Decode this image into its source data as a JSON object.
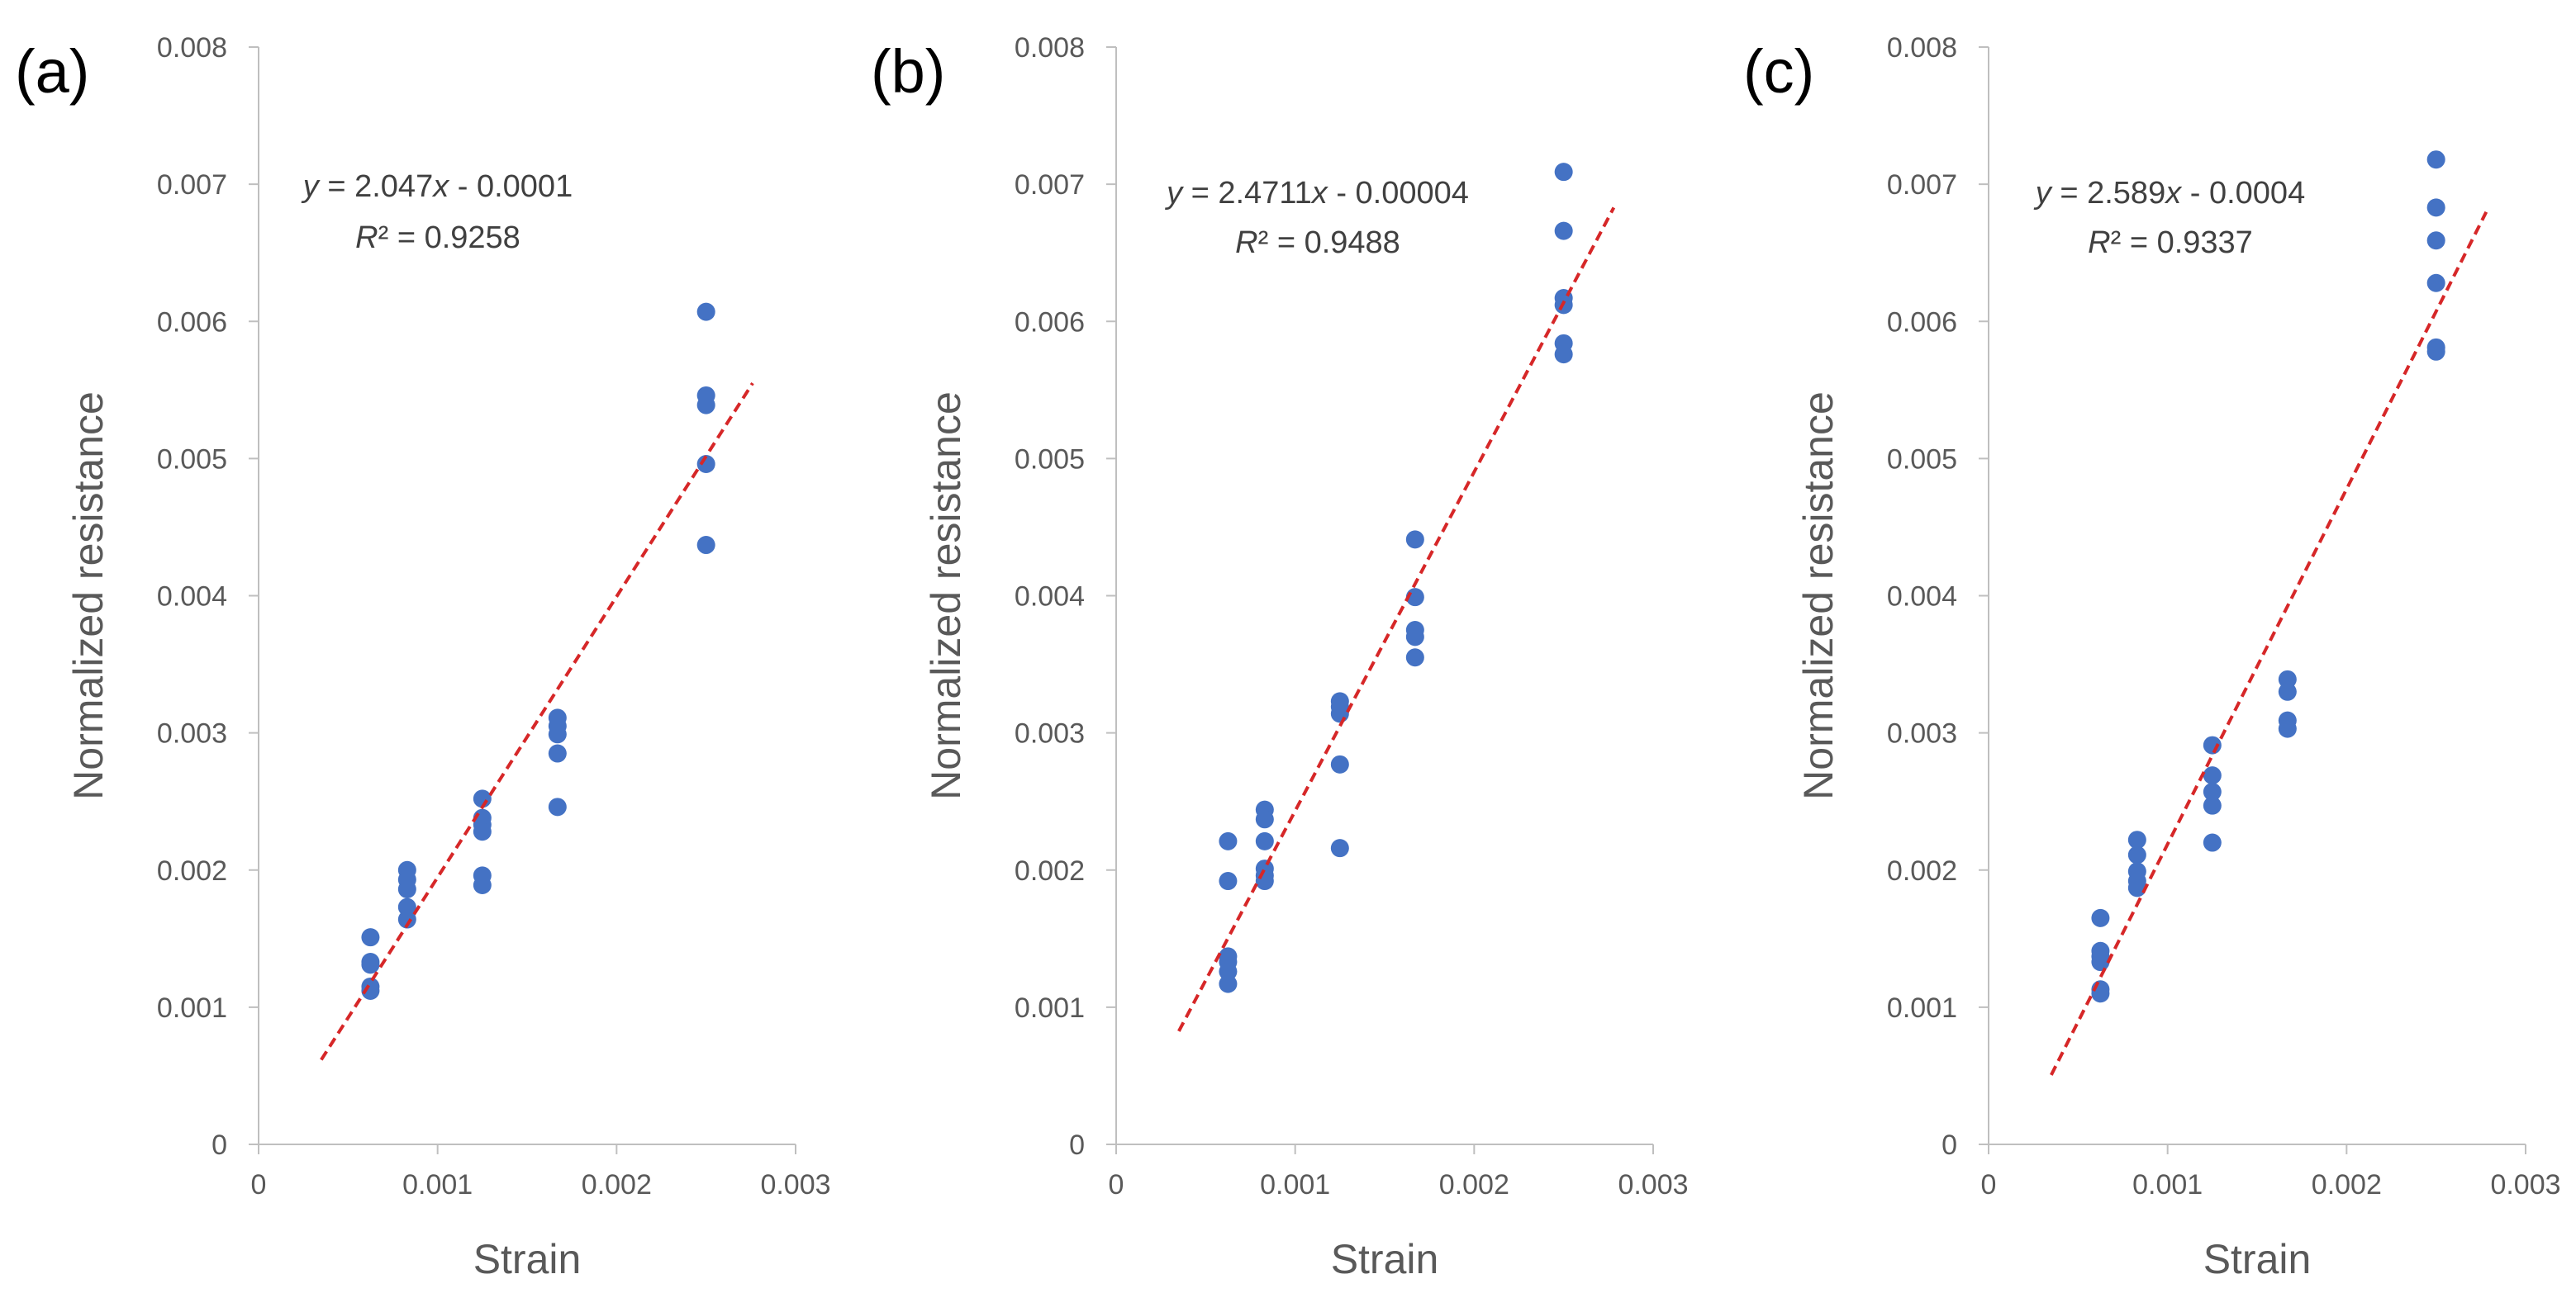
{
  "chart_data": [
    {
      "type": "scatter",
      "panel_label": "(a)",
      "xlabel": "Strain",
      "ylabel": "Normalized resistance",
      "xlim": [
        0,
        0.003
      ],
      "ylim": [
        0,
        0.008
      ],
      "x_ticks": [
        "0",
        "0.001",
        "0.002",
        "0.003"
      ],
      "y_ticks": [
        "0",
        "0.001",
        "0.002",
        "0.003",
        "0.004",
        "0.005",
        "0.006",
        "0.007",
        "0.008"
      ],
      "points": [
        [
          0.000625,
          0.00151
        ],
        [
          0.000625,
          0.00133
        ],
        [
          0.000625,
          0.00131
        ],
        [
          0.000625,
          0.00115
        ],
        [
          0.000625,
          0.00112
        ],
        [
          0.00083,
          0.002
        ],
        [
          0.00083,
          0.00193
        ],
        [
          0.00083,
          0.00186
        ],
        [
          0.00083,
          0.00173
        ],
        [
          0.00083,
          0.00164
        ],
        [
          0.00125,
          0.00252
        ],
        [
          0.00125,
          0.00238
        ],
        [
          0.00125,
          0.00233
        ],
        [
          0.00125,
          0.00228
        ],
        [
          0.00125,
          0.00196
        ],
        [
          0.00125,
          0.00189
        ],
        [
          0.00167,
          0.00311
        ],
        [
          0.00167,
          0.00305
        ],
        [
          0.00167,
          0.00299
        ],
        [
          0.00167,
          0.00285
        ],
        [
          0.00167,
          0.00246
        ],
        [
          0.0025,
          0.00607
        ],
        [
          0.0025,
          0.00546
        ],
        [
          0.0025,
          0.00539
        ],
        [
          0.0025,
          0.00496
        ],
        [
          0.0025,
          0.00437
        ]
      ],
      "trendline": {
        "slope": 2.047,
        "intercept": -0.0001,
        "x_range": [
          0.00035,
          0.00276
        ],
        "style": "dashed",
        "color": "#d62728"
      },
      "equation_label": "y = 2.047x - 0.0001",
      "r2_label": "R² = 0.9258"
    },
    {
      "type": "scatter",
      "panel_label": "(b)",
      "xlabel": "Strain",
      "ylabel": "Normalized resistance",
      "xlim": [
        0,
        0.003
      ],
      "ylim": [
        0,
        0.008
      ],
      "x_ticks": [
        "0",
        "0.001",
        "0.002",
        "0.003"
      ],
      "y_ticks": [
        "0",
        "0.001",
        "0.002",
        "0.003",
        "0.004",
        "0.005",
        "0.006",
        "0.007",
        "0.008"
      ],
      "points": [
        [
          0.000625,
          0.00221
        ],
        [
          0.000625,
          0.00192
        ],
        [
          0.000625,
          0.00137
        ],
        [
          0.000625,
          0.00133
        ],
        [
          0.000625,
          0.00126
        ],
        [
          0.000625,
          0.00117
        ],
        [
          0.00083,
          0.00244
        ],
        [
          0.00083,
          0.00237
        ],
        [
          0.00083,
          0.00221
        ],
        [
          0.00083,
          0.00201
        ],
        [
          0.00083,
          0.00196
        ],
        [
          0.00083,
          0.00192
        ],
        [
          0.00125,
          0.00323
        ],
        [
          0.00125,
          0.00319
        ],
        [
          0.00125,
          0.00314
        ],
        [
          0.00125,
          0.00277
        ],
        [
          0.00125,
          0.00216
        ],
        [
          0.00167,
          0.00441
        ],
        [
          0.00167,
          0.00399
        ],
        [
          0.00167,
          0.00375
        ],
        [
          0.00167,
          0.0037
        ],
        [
          0.00167,
          0.00355
        ],
        [
          0.0025,
          0.00709
        ],
        [
          0.0025,
          0.00666
        ],
        [
          0.0025,
          0.00617
        ],
        [
          0.0025,
          0.00612
        ],
        [
          0.0025,
          0.00584
        ],
        [
          0.0025,
          0.00576
        ]
      ],
      "trendline": {
        "slope": 2.4711,
        "intercept": -4e-05,
        "x_range": [
          0.00035,
          0.00278
        ],
        "style": "dashed",
        "color": "#d62728"
      },
      "equation_label": "y = 2.4711x - 0.00004",
      "r2_label": "R² = 0.9488"
    },
    {
      "type": "scatter",
      "panel_label": "(c)",
      "xlabel": "Strain",
      "ylabel": "Normalized resistance",
      "xlim": [
        0,
        0.003
      ],
      "ylim": [
        0,
        0.008
      ],
      "x_ticks": [
        "0",
        "0.001",
        "0.002",
        "0.003"
      ],
      "y_ticks": [
        "0",
        "0.001",
        "0.002",
        "0.003",
        "0.004",
        "0.005",
        "0.006",
        "0.007",
        "0.008"
      ],
      "points": [
        [
          0.000625,
          0.00165
        ],
        [
          0.000625,
          0.00141
        ],
        [
          0.000625,
          0.00137
        ],
        [
          0.000625,
          0.00133
        ],
        [
          0.000625,
          0.00113
        ],
        [
          0.000625,
          0.0011
        ],
        [
          0.00083,
          0.00222
        ],
        [
          0.00083,
          0.00211
        ],
        [
          0.00083,
          0.00199
        ],
        [
          0.00083,
          0.00192
        ],
        [
          0.00083,
          0.00187
        ],
        [
          0.00125,
          0.00291
        ],
        [
          0.00125,
          0.00269
        ],
        [
          0.00125,
          0.00257
        ],
        [
          0.00125,
          0.00247
        ],
        [
          0.00125,
          0.0022
        ],
        [
          0.00167,
          0.00339
        ],
        [
          0.00167,
          0.0033
        ],
        [
          0.00167,
          0.00309
        ],
        [
          0.00167,
          0.00303
        ],
        [
          0.0025,
          0.00718
        ],
        [
          0.0025,
          0.00683
        ],
        [
          0.0025,
          0.00659
        ],
        [
          0.0025,
          0.00628
        ],
        [
          0.0025,
          0.00581
        ],
        [
          0.0025,
          0.00578
        ]
      ],
      "trendline": {
        "slope": 2.589,
        "intercept": -0.0004,
        "x_range": [
          0.00035,
          0.00278
        ],
        "style": "dashed",
        "color": "#d62728"
      },
      "equation_label": "y = 2.589x - 0.0004",
      "r2_label": "R² = 0.9337"
    }
  ],
  "colors": {
    "marker": "#4472c4",
    "trendline": "#d62728",
    "axis": "#bfbfbf",
    "text": "#595959"
  }
}
